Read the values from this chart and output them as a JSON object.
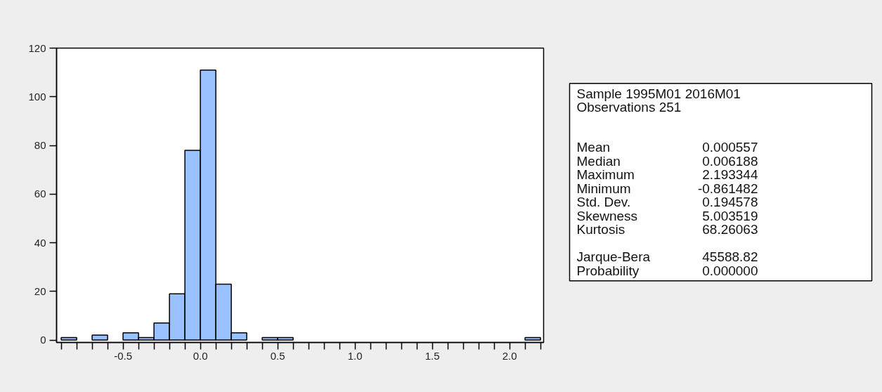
{
  "chart_data": {
    "type": "histogram",
    "bins": [
      -0.9,
      -0.8,
      -0.7,
      -0.6,
      -0.5,
      -0.4,
      -0.3,
      -0.2,
      -0.1,
      0.0,
      0.1,
      0.2,
      0.3,
      0.4,
      0.5,
      0.6,
      0.7,
      0.8,
      0.9,
      1.0,
      1.1,
      1.2,
      1.3,
      1.4,
      1.5,
      1.6,
      1.7,
      1.8,
      1.9,
      2.0,
      2.1,
      2.2
    ],
    "values": [
      1,
      0,
      2,
      0,
      3,
      1,
      7,
      19,
      78,
      111,
      23,
      3,
      0,
      1,
      1,
      0,
      0,
      0,
      0,
      0,
      0,
      0,
      0,
      0,
      0,
      0,
      0,
      0,
      0,
      0,
      1
    ],
    "color": "#99c0ff",
    "xlim": [
      -0.93,
      2.22
    ],
    "ylim": [
      -1,
      120
    ],
    "xticks": [
      {
        "value": -0.9,
        "label": null
      },
      {
        "value": -0.8,
        "label": null
      },
      {
        "value": -0.7,
        "label": null
      },
      {
        "value": -0.6,
        "label": null
      },
      {
        "value": -0.5,
        "label": "-0.5"
      },
      {
        "value": -0.4,
        "label": null
      },
      {
        "value": -0.3,
        "label": null
      },
      {
        "value": -0.2,
        "label": null
      },
      {
        "value": -0.1,
        "label": null
      },
      {
        "value": 0.0,
        "label": "0.0"
      },
      {
        "value": 0.1,
        "label": null
      },
      {
        "value": 0.2,
        "label": null
      },
      {
        "value": 0.3,
        "label": null
      },
      {
        "value": 0.4,
        "label": null
      },
      {
        "value": 0.5,
        "label": "0.5"
      },
      {
        "value": 0.6,
        "label": null
      },
      {
        "value": 0.7,
        "label": null
      },
      {
        "value": 0.8,
        "label": null
      },
      {
        "value": 0.9,
        "label": null
      },
      {
        "value": 1.0,
        "label": "1.0"
      },
      {
        "value": 1.1,
        "label": null
      },
      {
        "value": 1.2,
        "label": null
      },
      {
        "value": 1.3,
        "label": null
      },
      {
        "value": 1.4,
        "label": null
      },
      {
        "value": 1.5,
        "label": "1.5"
      },
      {
        "value": 1.6,
        "label": null
      },
      {
        "value": 1.7,
        "label": null
      },
      {
        "value": 1.8,
        "label": null
      },
      {
        "value": 1.9,
        "label": null
      },
      {
        "value": 2.0,
        "label": "2.0"
      },
      {
        "value": 2.1,
        "label": null
      },
      {
        "value": 2.2,
        "label": null
      }
    ],
    "yticks": [
      0,
      20,
      40,
      60,
      80,
      100,
      120
    ],
    "grid": false,
    "annotations": [
      "Sample 1995M01 2016M01",
      "Observations 251",
      "Mean",
      "0.000557",
      "Median",
      "0.006188",
      "Maximum",
      "2.193344",
      "Minimum",
      "-0.861482",
      "Std. Dev.",
      "0.194578",
      "Skewness",
      "5.003519",
      "Kurtosis",
      "68.26063",
      "Jarque-Bera",
      "45588.82",
      "Probability",
      "0.000000"
    ]
  }
}
